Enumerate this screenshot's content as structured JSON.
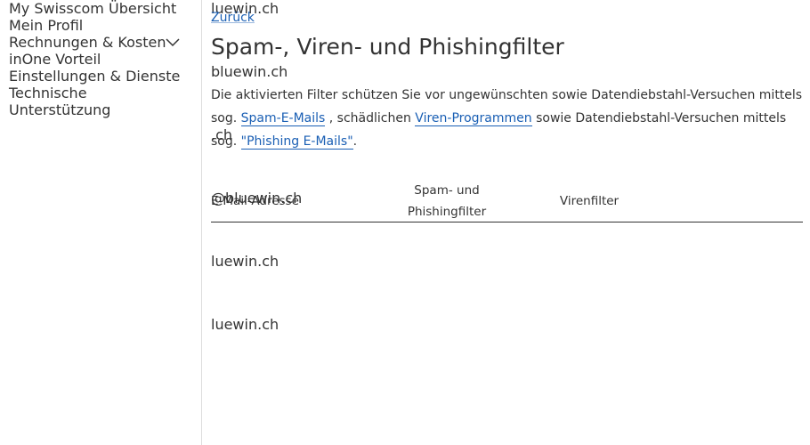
{
  "sidebar": {
    "items": [
      "My Swisscom Übersicht",
      "Mein Profil",
      "Rechnungen & Kosten",
      "inOne Vorteil",
      "Einstellungen & Dienste",
      "Technische Unterstützung"
    ]
  },
  "back_link": "Zurück",
  "title": "Spam-, Viren- und Phishingfilter",
  "intro": {
    "parts": [
      {
        "text": "Die aktivierten Filter schützen Sie vor ungewünschten sowie Datendiebstahl-Versuchen mittels sog. ",
        "link": false
      },
      {
        "text": "Spam-E-Mails",
        "link": true
      },
      {
        "text": " , schädlichen ",
        "link": false
      },
      {
        "text": "Viren-Programmen",
        "link": true
      },
      {
        "text": " sowie Datendiebstahl-Versuchen mittels sog. ",
        "link": false
      },
      {
        "text": "\"Phishing E-Mails\"",
        "link": true
      },
      {
        "text": ".",
        "link": false
      }
    ]
  },
  "table": {
    "headers": [
      "E-Mail-Adresse",
      "Spam- und Phishingfilter",
      "Virenfilter"
    ],
    "rows": [
      {
        "email": "luewin.ch",
        "spam": true,
        "virus": true
      },
      {
        "email": "bluewin.ch",
        "spam": true,
        "virus": true
      },
      {
        "email": ".ch",
        "spam": true,
        "virus": true
      },
      {
        "email": "@bluewin.ch",
        "spam": true,
        "virus": true
      },
      {
        "email": "luewin.ch",
        "spam": true,
        "virus": true
      },
      {
        "email": "luewin.ch",
        "spam": true,
        "virus": true
      }
    ]
  }
}
